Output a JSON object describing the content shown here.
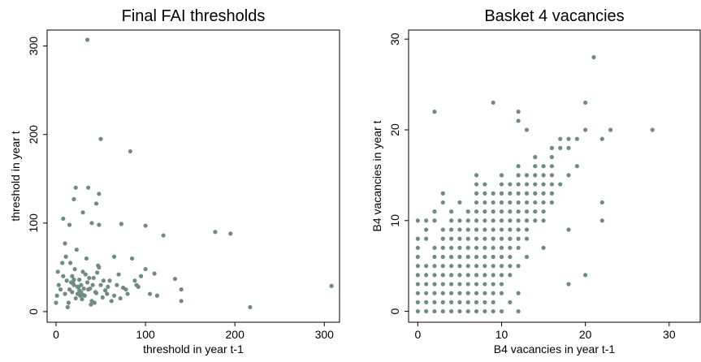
{
  "chart_data": [
    {
      "type": "scatter",
      "title": "Final FAI thresholds",
      "x_label": "threshold in year t-1",
      "y_label": "threshold in year t",
      "color": "#6e8d80",
      "xlim": [
        -10,
        317
      ],
      "ylim": [
        -12,
        318
      ],
      "xticks": [
        0,
        100,
        200,
        300
      ],
      "yticks": [
        0,
        100,
        200,
        300
      ],
      "x": [
        35,
        50,
        83,
        48,
        36,
        22,
        30,
        20,
        8,
        100,
        73,
        120,
        178,
        195,
        308,
        217,
        140,
        140,
        133,
        113,
        100,
        95,
        110,
        90,
        85,
        65,
        40,
        48,
        45,
        15,
        10,
        7,
        2,
        3,
        1,
        0,
        10,
        12,
        15,
        18,
        20,
        22,
        25,
        28,
        30,
        32,
        35,
        38,
        40,
        42,
        45,
        48,
        50,
        55,
        60,
        65,
        70,
        75,
        80,
        14,
        16,
        19,
        21,
        24,
        26,
        29,
        31,
        34,
        37,
        39,
        41,
        44,
        46,
        52,
        58,
        62,
        5,
        8,
        11,
        13,
        17,
        23,
        27,
        33,
        36,
        43,
        47,
        53,
        57,
        68,
        72,
        78,
        88,
        92,
        105,
        26,
        28,
        30,
        24,
        20,
        18
      ],
      "values": [
        307,
        195,
        181,
        133,
        140,
        140,
        112,
        127,
        105,
        97,
        99,
        86,
        90,
        88,
        29,
        5,
        25,
        12,
        37,
        18,
        48,
        40,
        43,
        30,
        60,
        62,
        100,
        98,
        122,
        98,
        77,
        55,
        45,
        30,
        18,
        10,
        20,
        35,
        25,
        40,
        30,
        15,
        28,
        22,
        45,
        18,
        33,
        26,
        12,
        38,
        21,
        50,
        30,
        24,
        35,
        18,
        42,
        27,
        20,
        10,
        55,
        32,
        48,
        20,
        36,
        14,
        26,
        60,
        38,
        8,
        30,
        22,
        44,
        16,
        28,
        12,
        25,
        40,
        62,
        5,
        33,
        70,
        18,
        42,
        25,
        10,
        52,
        35,
        20,
        30,
        15,
        25,
        35,
        28,
        20,
        24,
        30,
        19,
        28,
        36,
        22
      ],
      "point_radius": 2.6
    },
    {
      "type": "scatter",
      "title": "Basket 4 vacancies",
      "x_label": "B4 vacancies in year t-1",
      "y_label": "B4 vacancies in year t",
      "color": "#6e8d80",
      "xlim": [
        -1.1,
        33.7
      ],
      "ylim": [
        -1.2,
        31
      ],
      "xticks": [
        0,
        10,
        20,
        30
      ],
      "yticks": [
        0,
        10,
        20,
        30
      ],
      "x": [
        0,
        1,
        2,
        3,
        4,
        5,
        6,
        7,
        8,
        9,
        10,
        12,
        0,
        1,
        2,
        3,
        4,
        5,
        6,
        7,
        8,
        9,
        11,
        0,
        1,
        2,
        3,
        4,
        5,
        6,
        7,
        8,
        9,
        10,
        12,
        0,
        1,
        2,
        3,
        4,
        5,
        6,
        7,
        8,
        9,
        10,
        18,
        0,
        1,
        2,
        3,
        4,
        5,
        6,
        7,
        8,
        9,
        10,
        11,
        20,
        0,
        1,
        2,
        3,
        4,
        5,
        6,
        7,
        8,
        9,
        10,
        11,
        12,
        0,
        2,
        3,
        4,
        5,
        6,
        7,
        8,
        9,
        10,
        11,
        13,
        0,
        2,
        3,
        4,
        5,
        6,
        7,
        8,
        9,
        10,
        11,
        12,
        15,
        0,
        1,
        3,
        4,
        5,
        6,
        7,
        8,
        9,
        10,
        11,
        12,
        13,
        1,
        3,
        4,
        5,
        6,
        7,
        8,
        9,
        10,
        11,
        12,
        13,
        18,
        0,
        1,
        2,
        4,
        5,
        6,
        7,
        8,
        9,
        10,
        11,
        12,
        13,
        14,
        15,
        22,
        2,
        4,
        6,
        7,
        8,
        9,
        10,
        11,
        12,
        13,
        14,
        15,
        3,
        5,
        7,
        8,
        9,
        10,
        11,
        12,
        13,
        14,
        15,
        16,
        22,
        3,
        7,
        8,
        9,
        10,
        11,
        12,
        13,
        14,
        15,
        16,
        7,
        8,
        10,
        11,
        12,
        13,
        14,
        15,
        16,
        17,
        7,
        10,
        12,
        13,
        14,
        15,
        16,
        18,
        12,
        14,
        15,
        16,
        19,
        14,
        16,
        16,
        17,
        18,
        17,
        18,
        19,
        22,
        13,
        20,
        23,
        28,
        12,
        2,
        12,
        9,
        20,
        21
      ],
      "values": [
        0,
        0,
        0,
        0,
        0,
        0,
        0,
        0,
        0,
        0,
        0,
        0,
        1,
        1,
        1,
        1,
        1,
        1,
        1,
        1,
        1,
        1,
        1,
        2,
        2,
        2,
        2,
        2,
        2,
        2,
        2,
        2,
        2,
        2,
        2,
        3,
        3,
        3,
        3,
        3,
        3,
        3,
        3,
        3,
        3,
        3,
        3,
        4,
        4,
        4,
        4,
        4,
        4,
        4,
        4,
        4,
        4,
        4,
        4,
        4,
        5,
        5,
        5,
        5,
        5,
        5,
        5,
        5,
        5,
        5,
        5,
        5,
        5,
        6,
        6,
        6,
        6,
        6,
        6,
        6,
        6,
        6,
        6,
        6,
        6,
        7,
        7,
        7,
        7,
        7,
        7,
        7,
        7,
        7,
        7,
        7,
        7,
        7,
        8,
        8,
        8,
        8,
        8,
        8,
        8,
        8,
        8,
        8,
        8,
        8,
        8,
        9,
        9,
        9,
        9,
        9,
        9,
        9,
        9,
        9,
        9,
        9,
        9,
        9,
        10,
        10,
        10,
        10,
        10,
        10,
        10,
        10,
        10,
        10,
        10,
        10,
        10,
        10,
        10,
        10,
        11,
        11,
        11,
        11,
        11,
        11,
        11,
        11,
        11,
        11,
        11,
        11,
        12,
        12,
        12,
        12,
        12,
        12,
        12,
        12,
        12,
        12,
        12,
        12,
        12,
        13,
        13,
        13,
        13,
        13,
        13,
        13,
        13,
        13,
        13,
        13,
        14,
        14,
        14,
        14,
        14,
        14,
        14,
        14,
        14,
        14,
        15,
        15,
        15,
        15,
        15,
        15,
        15,
        15,
        16,
        16,
        16,
        16,
        16,
        17,
        17,
        18,
        18,
        18,
        19,
        19,
        19,
        19,
        20,
        20,
        20,
        20,
        21,
        22,
        22,
        23,
        23,
        28
      ],
      "point_radius": 2.6
    }
  ]
}
